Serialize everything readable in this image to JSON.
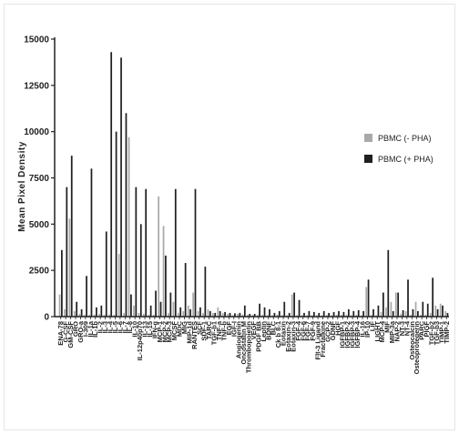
{
  "chart_data": {
    "type": "bar",
    "ylabel": "Mean Pixel Density",
    "ylim": [
      0,
      15000
    ],
    "yticks": [
      0,
      2500,
      5000,
      7500,
      10000,
      12500,
      15000
    ],
    "ytick_labels": [
      "0",
      "2500",
      "5000",
      "7500",
      "10000",
      "12500",
      "15000"
    ],
    "legend_position": "right",
    "colors": {
      "minus": "#a9a9a9",
      "plus": "#202020",
      "axis": "#222222"
    },
    "categories": [
      "ENA-78",
      "G-CSF",
      "GM-CSF",
      "GRO",
      "GRO-a",
      "I-309",
      "IL-1a",
      "IL-1b",
      "IL-2",
      "IL-3",
      "IL-4",
      "IL-5",
      "IL-6",
      "IL-7",
      "IL-8",
      "IL-10",
      "IL-12p40p70",
      "IL-13",
      "IL-15",
      "IFN-g",
      "MCP-1",
      "MCP-2",
      "MCP-3",
      "MCSF",
      "MDC",
      "MIG",
      "MIP-1d",
      "RANTES",
      "SCF",
      "SDF-1",
      "TARC",
      "TGF-b1",
      "TNF-a",
      "TNF-b",
      "EGF",
      "IGF-I",
      "Angiogenin",
      "Oncostatin M",
      "Thrombopoietin",
      "VEGF",
      "PDGF BB",
      "Leptin",
      "BDNF",
      "BLC",
      "Ck b 8-1",
      "Eotaxin",
      "Eotaxin-2",
      "Eotaxin-3",
      "FGF-4",
      "FGF-6",
      "FGF-7",
      "FGF-9",
      "Flt-3 Ligand",
      "Fractalkine",
      "GCP-2",
      "GDNF",
      "HGF",
      "IGFBP-1",
      "IGFBP-2",
      "IGFBP-3",
      "IGFBP-4",
      "IL-16",
      "IP-10",
      "LIF",
      "LIGHT",
      "MCP-4",
      "MIF",
      "MIP-3a",
      "NAP-2",
      "NT-3",
      "NT-4",
      "Osteocalcin",
      "Osteoprotegerin",
      "PARC",
      "PIGF",
      "TGF-b2",
      "TGF-b3",
      "TIMP-1",
      "TIMP-2"
    ],
    "series": [
      {
        "name": "PBMC (- PHA)",
        "values": [
          1200,
          400,
          5300,
          300,
          150,
          100,
          100,
          120,
          150,
          100,
          120,
          100,
          3400,
          200,
          9700,
          600,
          200,
          150,
          100,
          100,
          6500,
          4900,
          200,
          800,
          200,
          300,
          600,
          1300,
          300,
          200,
          400,
          200,
          500,
          200,
          150,
          80,
          150,
          120,
          100,
          100,
          100,
          100,
          90,
          80,
          120,
          90,
          80,
          1200,
          80,
          90,
          80,
          80,
          80,
          80,
          90,
          80,
          100,
          100,
          100,
          80,
          100,
          80,
          1600,
          100,
          80,
          250,
          500,
          800,
          1300,
          150,
          300,
          100,
          800,
          100,
          100,
          200,
          600,
          700,
          300
        ]
      },
      {
        "name": "PBMC (+ PHA)",
        "values": [
          3600,
          7000,
          8700,
          800,
          400,
          2200,
          8000,
          500,
          600,
          4600,
          14300,
          10000,
          14000,
          11000,
          1200,
          7000,
          5000,
          6900,
          600,
          1400,
          800,
          3300,
          1300,
          6900,
          500,
          2900,
          400,
          6900,
          500,
          2700,
          300,
          200,
          300,
          250,
          200,
          180,
          200,
          600,
          150,
          150,
          700,
          500,
          400,
          200,
          300,
          800,
          200,
          1300,
          900,
          200,
          300,
          250,
          200,
          300,
          200,
          250,
          300,
          250,
          400,
          300,
          350,
          300,
          2000,
          400,
          600,
          1300,
          3600,
          300,
          1300,
          350,
          2000,
          400,
          300,
          800,
          700,
          2100,
          400,
          600,
          200
        ]
      }
    ]
  }
}
